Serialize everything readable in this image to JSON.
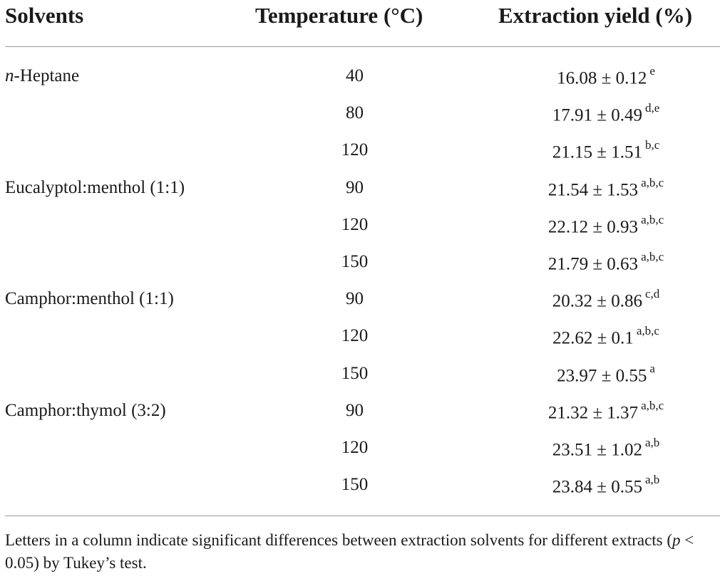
{
  "table": {
    "headers": {
      "solvents": "Solvents",
      "temperature": "Temperature (°C)",
      "yield": "Extraction yield (%)"
    },
    "rows": [
      {
        "solvent_italic": "n",
        "solvent": "-Heptane",
        "temp": "40",
        "yield": "16.08 ± 0.12",
        "sig": "e"
      },
      {
        "solvent_italic": "",
        "solvent": "",
        "temp": "80",
        "yield": "17.91 ± 0.49",
        "sig": "d,e"
      },
      {
        "solvent_italic": "",
        "solvent": "",
        "temp": "120",
        "yield": "21.15 ± 1.51",
        "sig": "b,c"
      },
      {
        "solvent_italic": "",
        "solvent": "Eucalyptol:menthol (1:1)",
        "temp": "90",
        "yield": "21.54 ± 1.53",
        "sig": "a,b,c"
      },
      {
        "solvent_italic": "",
        "solvent": "",
        "temp": "120",
        "yield": "22.12 ± 0.93",
        "sig": "a,b,c"
      },
      {
        "solvent_italic": "",
        "solvent": "",
        "temp": "150",
        "yield": "21.79 ± 0.63",
        "sig": "a,b,c"
      },
      {
        "solvent_italic": "",
        "solvent": "Camphor:menthol (1:1)",
        "temp": "90",
        "yield": "20.32 ± 0.86",
        "sig": "c,d"
      },
      {
        "solvent_italic": "",
        "solvent": "",
        "temp": "120",
        "yield": "22.62 ± 0.1",
        "sig": "a,b,c"
      },
      {
        "solvent_italic": "",
        "solvent": "",
        "temp": "150",
        "yield": "23.97 ± 0.55",
        "sig": "a"
      },
      {
        "solvent_italic": "",
        "solvent": "Camphor:thymol (3:2)",
        "temp": "90",
        "yield": "21.32 ± 1.37",
        "sig": "a,b,c"
      },
      {
        "solvent_italic": "",
        "solvent": "",
        "temp": "120",
        "yield": "23.51 ± 1.02",
        "sig": "a,b"
      },
      {
        "solvent_italic": "",
        "solvent": "",
        "temp": "150",
        "yield": "23.84 ± 0.55",
        "sig": "a,b"
      }
    ]
  },
  "footnote": {
    "part1": "Letters in a column indicate significant differences between extraction solvents for different extracts (",
    "p_italic": "p",
    "part2": " < 0.05) by Tukey’s test."
  }
}
